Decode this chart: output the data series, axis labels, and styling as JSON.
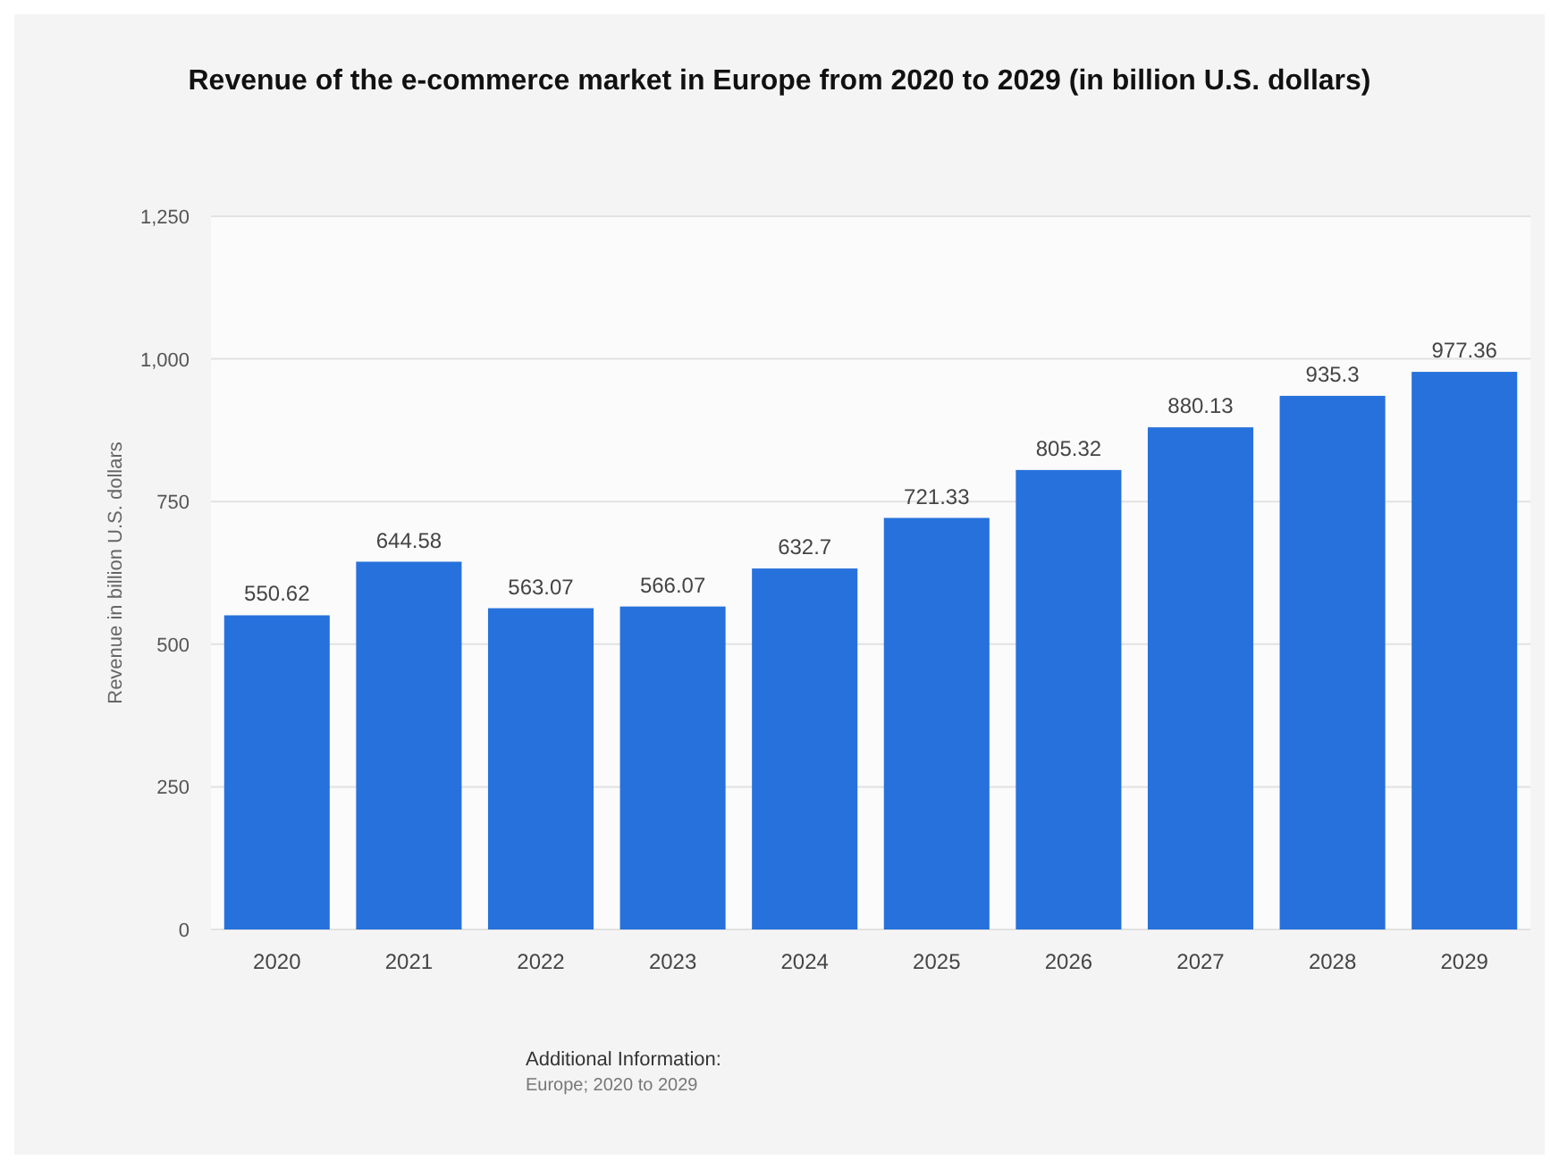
{
  "chart_data": {
    "type": "bar",
    "title": "Revenue of the e-commerce market in Europe from 2020 to 2029 (in billion U.S. dollars)",
    "ylabel": "Revenue in billion U.S. dollars",
    "categories": [
      "2020",
      "2021",
      "2022",
      "2023",
      "2024",
      "2025",
      "2026",
      "2027",
      "2028",
      "2029"
    ],
    "values": [
      550.62,
      644.58,
      563.07,
      566.07,
      632.7,
      721.33,
      805.32,
      880.13,
      935.3,
      977.36
    ],
    "color": "#2771dc",
    "ylim": [
      0,
      1250
    ],
    "yticks": [
      {
        "value": 0,
        "label": "0"
      },
      {
        "value": 250,
        "label": "250"
      },
      {
        "value": 500,
        "label": "500"
      },
      {
        "value": 750,
        "label": "750"
      },
      {
        "value": 1000,
        "label": "1,000"
      },
      {
        "value": 1250,
        "label": "1,250"
      }
    ],
    "grid": "y",
    "data_labels": true,
    "annotations": [
      "Additional Information:",
      "Europe; 2020 to 2029"
    ]
  }
}
